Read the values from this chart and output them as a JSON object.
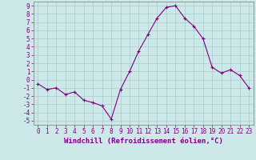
{
  "x": [
    0,
    1,
    2,
    3,
    4,
    5,
    6,
    7,
    8,
    9,
    10,
    11,
    12,
    13,
    14,
    15,
    16,
    17,
    18,
    19,
    20,
    21,
    22,
    23
  ],
  "y": [
    -0.5,
    -1.2,
    -1.0,
    -1.8,
    -1.5,
    -2.5,
    -2.8,
    -3.2,
    -4.8,
    -1.2,
    1.0,
    3.5,
    5.5,
    7.5,
    8.8,
    9.0,
    7.5,
    6.5,
    5.0,
    1.5,
    0.8,
    1.2,
    0.5,
    -1.0
  ],
  "xlabel": "Windchill (Refroidissement éolien,°C)",
  "xlim": [
    -0.5,
    23.5
  ],
  "ylim": [
    -5.5,
    9.5
  ],
  "yticks": [
    -5,
    -4,
    -3,
    -2,
    -1,
    0,
    1,
    2,
    3,
    4,
    5,
    6,
    7,
    8,
    9
  ],
  "xticks": [
    0,
    1,
    2,
    3,
    4,
    5,
    6,
    7,
    8,
    9,
    10,
    11,
    12,
    13,
    14,
    15,
    16,
    17,
    18,
    19,
    20,
    21,
    22,
    23
  ],
  "line_color": "#800080",
  "marker": "+",
  "bg_color": "#cce8e8",
  "grid_color": "#aacccc",
  "axis_color": "#777777",
  "xlabel_fontsize": 6.5,
  "tick_fontsize": 5.5,
  "font_family": "monospace"
}
